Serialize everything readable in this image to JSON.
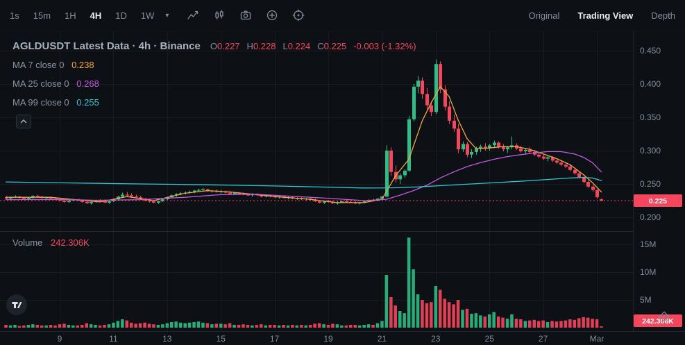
{
  "toolbar": {
    "timeframes": [
      "1s",
      "15m",
      "1H",
      "4H",
      "1D",
      "1W"
    ],
    "active_timeframe": "4H",
    "caret": "▾",
    "icon_names": [
      "line-chart-icon",
      "candles-style-icon",
      "camera-icon",
      "add-circle-icon",
      "target-settings-icon"
    ],
    "view_options": [
      "Original",
      "Trading View",
      "Depth"
    ],
    "active_view": "Trading View"
  },
  "header": {
    "title": "AGLDUSDT Latest Data · 4h · Binance",
    "ohlc": {
      "o_label": "O",
      "o_value": "0.227",
      "h_label": "H",
      "h_value": "0.228",
      "l_label": "L",
      "l_value": "0.224",
      "c_label": "C",
      "c_value": "0.225",
      "change": "-0.003 (-1.32%)"
    }
  },
  "legend": {
    "ma7": {
      "label": "MA 7 close 0",
      "value": "0.238"
    },
    "ma25": {
      "label": "MA 25 close 0",
      "value": "0.268"
    },
    "ma99": {
      "label": "MA 99 close 0",
      "value": "0.255"
    }
  },
  "volume_pane": {
    "label": "Volume",
    "value": "242.306K"
  },
  "chart_data": {
    "type": "candlestick",
    "symbol": "AGLDUSDT",
    "interval": "4h",
    "exchange": "Binance",
    "price_axis_range": [
      0.19,
      0.46
    ],
    "volume_axis_range": [
      0,
      16.5
    ],
    "price_ticks": [
      0.45,
      0.4,
      0.35,
      0.3,
      0.25,
      0.2
    ],
    "volume_ticks": [
      [
        "15M",
        15
      ],
      [
        "10M",
        10
      ],
      [
        "5M",
        5
      ]
    ],
    "x_ticks": [
      [
        "9",
        12
      ],
      [
        "11",
        24
      ],
      [
        "13",
        36
      ],
      [
        "15",
        48
      ],
      [
        "17",
        60
      ],
      [
        "19",
        72
      ],
      [
        "21",
        84
      ],
      [
        "23",
        96
      ],
      [
        "25",
        108
      ],
      [
        "27",
        120
      ],
      [
        "Mar",
        132
      ]
    ],
    "current_price": 0.225,
    "current_price_label": "0.225",
    "current_volume_label": "242.306K",
    "colors": {
      "up": "#2ebd85",
      "down": "#f6465d",
      "ma7": "#f0a841",
      "ma25": "#c45ae0",
      "ma99": "#31c8d8",
      "active_text": "#eaecef",
      "muted_text": "#848e9c"
    },
    "candles": [
      [
        0.23,
        0.232,
        0.227,
        0.228,
        0.5
      ],
      [
        0.228,
        0.231,
        0.226,
        0.23,
        0.4
      ],
      [
        0.23,
        0.233,
        0.229,
        0.231,
        0.5
      ],
      [
        0.231,
        0.232,
        0.228,
        0.229,
        0.3
      ],
      [
        0.229,
        0.23,
        0.226,
        0.227,
        0.4
      ],
      [
        0.227,
        0.23,
        0.226,
        0.229,
        0.5
      ],
      [
        0.229,
        0.233,
        0.228,
        0.232,
        0.6
      ],
      [
        0.232,
        0.234,
        0.23,
        0.231,
        0.5
      ],
      [
        0.231,
        0.232,
        0.228,
        0.229,
        0.4
      ],
      [
        0.229,
        0.231,
        0.227,
        0.23,
        0.4
      ],
      [
        0.23,
        0.231,
        0.227,
        0.228,
        0.5
      ],
      [
        0.228,
        0.23,
        0.226,
        0.227,
        0.4
      ],
      [
        0.227,
        0.229,
        0.224,
        0.225,
        0.6
      ],
      [
        0.225,
        0.227,
        0.222,
        0.223,
        0.7
      ],
      [
        0.223,
        0.226,
        0.221,
        0.225,
        0.5
      ],
      [
        0.225,
        0.228,
        0.224,
        0.227,
        0.4
      ],
      [
        0.227,
        0.228,
        0.224,
        0.225,
        0.4
      ],
      [
        0.225,
        0.226,
        0.222,
        0.223,
        0.5
      ],
      [
        0.223,
        0.225,
        0.22,
        0.221,
        0.8
      ],
      [
        0.221,
        0.224,
        0.219,
        0.223,
        0.6
      ],
      [
        0.223,
        0.226,
        0.222,
        0.225,
        0.5
      ],
      [
        0.225,
        0.227,
        0.223,
        0.224,
        0.4
      ],
      [
        0.224,
        0.226,
        0.221,
        0.222,
        0.5
      ],
      [
        0.222,
        0.225,
        0.22,
        0.224,
        0.6
      ],
      [
        0.224,
        0.228,
        0.223,
        0.227,
        0.9
      ],
      [
        0.227,
        0.232,
        0.226,
        0.231,
        1.2
      ],
      [
        0.231,
        0.237,
        0.229,
        0.234,
        1.5
      ],
      [
        0.234,
        0.238,
        0.231,
        0.233,
        1.3
      ],
      [
        0.233,
        0.236,
        0.23,
        0.231,
        0.9
      ],
      [
        0.231,
        0.234,
        0.228,
        0.23,
        0.7
      ],
      [
        0.23,
        0.232,
        0.226,
        0.228,
        0.8
      ],
      [
        0.228,
        0.229,
        0.224,
        0.225,
        0.9
      ],
      [
        0.225,
        0.227,
        0.222,
        0.224,
        0.7
      ],
      [
        0.224,
        0.226,
        0.221,
        0.222,
        0.6
      ],
      [
        0.222,
        0.225,
        0.22,
        0.224,
        0.5
      ],
      [
        0.224,
        0.228,
        0.223,
        0.227,
        0.6
      ],
      [
        0.227,
        0.231,
        0.226,
        0.23,
        0.8
      ],
      [
        0.23,
        0.234,
        0.229,
        0.233,
        1.0
      ],
      [
        0.233,
        0.236,
        0.231,
        0.235,
        1.1
      ],
      [
        0.235,
        0.238,
        0.233,
        0.236,
        0.9
      ],
      [
        0.236,
        0.239,
        0.234,
        0.237,
        0.8
      ],
      [
        0.237,
        0.24,
        0.235,
        0.238,
        0.9
      ],
      [
        0.238,
        0.241,
        0.236,
        0.24,
        1.0
      ],
      [
        0.24,
        0.243,
        0.238,
        0.241,
        1.1
      ],
      [
        0.241,
        0.244,
        0.239,
        0.242,
        0.9
      ],
      [
        0.242,
        0.243,
        0.238,
        0.239,
        0.8
      ],
      [
        0.239,
        0.241,
        0.237,
        0.24,
        0.6
      ],
      [
        0.24,
        0.242,
        0.237,
        0.238,
        0.7
      ],
      [
        0.238,
        0.241,
        0.236,
        0.239,
        0.7
      ],
      [
        0.239,
        0.24,
        0.236,
        0.237,
        0.6
      ],
      [
        0.237,
        0.239,
        0.234,
        0.235,
        0.8
      ],
      [
        0.235,
        0.238,
        0.233,
        0.237,
        0.5
      ],
      [
        0.237,
        0.238,
        0.234,
        0.235,
        0.5
      ],
      [
        0.235,
        0.237,
        0.233,
        0.234,
        0.6
      ],
      [
        0.234,
        0.236,
        0.232,
        0.233,
        0.5
      ],
      [
        0.233,
        0.236,
        0.231,
        0.235,
        0.4
      ],
      [
        0.235,
        0.236,
        0.232,
        0.233,
        0.5
      ],
      [
        0.233,
        0.234,
        0.23,
        0.231,
        0.6
      ],
      [
        0.231,
        0.234,
        0.23,
        0.233,
        0.4
      ],
      [
        0.233,
        0.234,
        0.23,
        0.231,
        0.5
      ],
      [
        0.231,
        0.233,
        0.229,
        0.23,
        0.5
      ],
      [
        0.23,
        0.232,
        0.228,
        0.231,
        0.4
      ],
      [
        0.231,
        0.232,
        0.228,
        0.229,
        0.5
      ],
      [
        0.229,
        0.231,
        0.227,
        0.23,
        0.4
      ],
      [
        0.23,
        0.231,
        0.227,
        0.228,
        0.5
      ],
      [
        0.228,
        0.23,
        0.226,
        0.229,
        0.4
      ],
      [
        0.229,
        0.23,
        0.226,
        0.227,
        0.5
      ],
      [
        0.227,
        0.229,
        0.225,
        0.228,
        0.4
      ],
      [
        0.228,
        0.229,
        0.225,
        0.226,
        0.5
      ],
      [
        0.226,
        0.228,
        0.223,
        0.224,
        0.7
      ],
      [
        0.224,
        0.226,
        0.221,
        0.222,
        0.8
      ],
      [
        0.222,
        0.225,
        0.22,
        0.224,
        0.6
      ],
      [
        0.224,
        0.226,
        0.222,
        0.223,
        0.5
      ],
      [
        0.223,
        0.225,
        0.22,
        0.221,
        0.7
      ],
      [
        0.221,
        0.224,
        0.219,
        0.222,
        0.6
      ],
      [
        0.222,
        0.225,
        0.221,
        0.224,
        0.4
      ],
      [
        0.224,
        0.226,
        0.222,
        0.223,
        0.4
      ],
      [
        0.223,
        0.225,
        0.221,
        0.222,
        0.5
      ],
      [
        0.222,
        0.224,
        0.22,
        0.221,
        0.5
      ],
      [
        0.221,
        0.223,
        0.219,
        0.222,
        0.4
      ],
      [
        0.222,
        0.225,
        0.221,
        0.224,
        0.5
      ],
      [
        0.224,
        0.227,
        0.223,
        0.226,
        0.6
      ],
      [
        0.226,
        0.228,
        0.224,
        0.225,
        0.5
      ],
      [
        0.225,
        0.229,
        0.224,
        0.228,
        0.8
      ],
      [
        0.228,
        0.232,
        0.226,
        0.231,
        1.2
      ],
      [
        0.231,
        0.308,
        0.23,
        0.3,
        9.5
      ],
      [
        0.3,
        0.305,
        0.262,
        0.268,
        5.5
      ],
      [
        0.268,
        0.278,
        0.252,
        0.257,
        4.0
      ],
      [
        0.257,
        0.266,
        0.25,
        0.263,
        3.0
      ],
      [
        0.263,
        0.272,
        0.259,
        0.27,
        2.6
      ],
      [
        0.27,
        0.352,
        0.268,
        0.347,
        16.2
      ],
      [
        0.347,
        0.4,
        0.344,
        0.396,
        10.5
      ],
      [
        0.396,
        0.412,
        0.386,
        0.405,
        6.0
      ],
      [
        0.405,
        0.41,
        0.378,
        0.385,
        5.0
      ],
      [
        0.385,
        0.394,
        0.362,
        0.368,
        4.4
      ],
      [
        0.368,
        0.374,
        0.352,
        0.358,
        4.6
      ],
      [
        0.358,
        0.437,
        0.355,
        0.43,
        7.5
      ],
      [
        0.43,
        0.434,
        0.386,
        0.392,
        6.8
      ],
      [
        0.392,
        0.398,
        0.36,
        0.366,
        5.2
      ],
      [
        0.366,
        0.374,
        0.34,
        0.345,
        4.6
      ],
      [
        0.345,
        0.354,
        0.328,
        0.333,
        4.2
      ],
      [
        0.333,
        0.34,
        0.296,
        0.302,
        5.0
      ],
      [
        0.302,
        0.314,
        0.298,
        0.31,
        3.2
      ],
      [
        0.31,
        0.313,
        0.29,
        0.294,
        3.4
      ],
      [
        0.294,
        0.302,
        0.289,
        0.298,
        2.5
      ],
      [
        0.298,
        0.306,
        0.294,
        0.303,
        2.6
      ],
      [
        0.303,
        0.309,
        0.298,
        0.306,
        2.2
      ],
      [
        0.306,
        0.311,
        0.3,
        0.304,
        2.0
      ],
      [
        0.304,
        0.31,
        0.3,
        0.308,
        2.4
      ],
      [
        0.308,
        0.315,
        0.304,
        0.312,
        2.8
      ],
      [
        0.312,
        0.314,
        0.303,
        0.306,
        2.0
      ],
      [
        0.306,
        0.31,
        0.299,
        0.302,
        1.8
      ],
      [
        0.302,
        0.307,
        0.297,
        0.305,
        1.6
      ],
      [
        0.305,
        0.321,
        0.302,
        0.308,
        2.4
      ],
      [
        0.308,
        0.311,
        0.301,
        0.303,
        1.6
      ],
      [
        0.303,
        0.307,
        0.297,
        0.299,
        1.5
      ],
      [
        0.299,
        0.304,
        0.294,
        0.301,
        1.2
      ],
      [
        0.301,
        0.305,
        0.296,
        0.298,
        1.3
      ],
      [
        0.298,
        0.301,
        0.292,
        0.294,
        1.4
      ],
      [
        0.294,
        0.298,
        0.289,
        0.291,
        1.2
      ],
      [
        0.291,
        0.295,
        0.286,
        0.288,
        1.3
      ],
      [
        0.288,
        0.292,
        0.284,
        0.29,
        1.0
      ],
      [
        0.29,
        0.292,
        0.283,
        0.285,
        1.2
      ],
      [
        0.285,
        0.288,
        0.28,
        0.282,
        1.1
      ],
      [
        0.282,
        0.286,
        0.277,
        0.279,
        1.2
      ],
      [
        0.279,
        0.282,
        0.274,
        0.276,
        1.3
      ],
      [
        0.276,
        0.279,
        0.269,
        0.271,
        1.5
      ],
      [
        0.271,
        0.274,
        0.264,
        0.266,
        1.4
      ],
      [
        0.266,
        0.269,
        0.258,
        0.26,
        1.7
      ],
      [
        0.26,
        0.263,
        0.251,
        0.253,
        1.9
      ],
      [
        0.253,
        0.256,
        0.244,
        0.246,
        1.8
      ],
      [
        0.246,
        0.249,
        0.238,
        0.241,
        1.6
      ],
      [
        0.241,
        0.242,
        0.228,
        0.23,
        1.5
      ],
      [
        0.227,
        0.228,
        0.224,
        0.225,
        0.242
      ]
    ],
    "ma_lines": [
      {
        "name": "MA(7)",
        "period": 7,
        "color_key": "ma7",
        "points": [
          [
            0,
            0.23
          ],
          [
            10,
            0.23
          ],
          [
            16,
            0.226
          ],
          [
            21,
            0.223
          ],
          [
            27,
            0.231
          ],
          [
            33,
            0.225
          ],
          [
            40,
            0.236
          ],
          [
            45,
            0.24
          ],
          [
            50,
            0.238
          ],
          [
            56,
            0.234
          ],
          [
            62,
            0.23
          ],
          [
            68,
            0.227
          ],
          [
            74,
            0.222
          ],
          [
            80,
            0.222
          ],
          [
            84,
            0.227
          ],
          [
            87,
            0.262
          ],
          [
            90,
            0.287
          ],
          [
            93,
            0.345
          ],
          [
            95,
            0.372
          ],
          [
            97,
            0.396
          ],
          [
            99,
            0.381
          ],
          [
            101,
            0.346
          ],
          [
            103,
            0.318
          ],
          [
            105,
            0.303
          ],
          [
            108,
            0.304
          ],
          [
            111,
            0.306
          ],
          [
            114,
            0.306
          ],
          [
            117,
            0.302
          ],
          [
            120,
            0.295
          ],
          [
            123,
            0.288
          ],
          [
            126,
            0.279
          ],
          [
            129,
            0.264
          ],
          [
            131,
            0.252
          ],
          [
            133,
            0.238
          ]
        ]
      },
      {
        "name": "MA(25)",
        "period": 25,
        "color_key": "ma25",
        "points": [
          [
            0,
            0.2265
          ],
          [
            12,
            0.2268
          ],
          [
            20,
            0.2255
          ],
          [
            30,
            0.2265
          ],
          [
            40,
            0.23
          ],
          [
            48,
            0.234
          ],
          [
            56,
            0.2345
          ],
          [
            64,
            0.2315
          ],
          [
            72,
            0.2285
          ],
          [
            80,
            0.225
          ],
          [
            85,
            0.227
          ],
          [
            88,
            0.233
          ],
          [
            91,
            0.24
          ],
          [
            94,
            0.248
          ],
          [
            97,
            0.259
          ],
          [
            100,
            0.268
          ],
          [
            103,
            0.276
          ],
          [
            106,
            0.282
          ],
          [
            109,
            0.287
          ],
          [
            112,
            0.291
          ],
          [
            115,
            0.294
          ],
          [
            118,
            0.2965
          ],
          [
            121,
            0.2985
          ],
          [
            124,
            0.2985
          ],
          [
            127,
            0.295
          ],
          [
            129,
            0.29
          ],
          [
            131,
            0.282
          ],
          [
            133,
            0.268
          ]
        ]
      },
      {
        "name": "MA(99)",
        "period": 99,
        "color_key": "ma99",
        "points": [
          [
            0,
            0.253
          ],
          [
            15,
            0.2515
          ],
          [
            30,
            0.25
          ],
          [
            45,
            0.2487
          ],
          [
            60,
            0.247
          ],
          [
            72,
            0.2452
          ],
          [
            80,
            0.244
          ],
          [
            86,
            0.2442
          ],
          [
            92,
            0.2455
          ],
          [
            98,
            0.2478
          ],
          [
            104,
            0.25
          ],
          [
            110,
            0.2522
          ],
          [
            116,
            0.2545
          ],
          [
            122,
            0.2572
          ],
          [
            126,
            0.259
          ],
          [
            129,
            0.2598
          ],
          [
            131,
            0.259
          ],
          [
            133,
            0.255
          ]
        ]
      }
    ]
  }
}
